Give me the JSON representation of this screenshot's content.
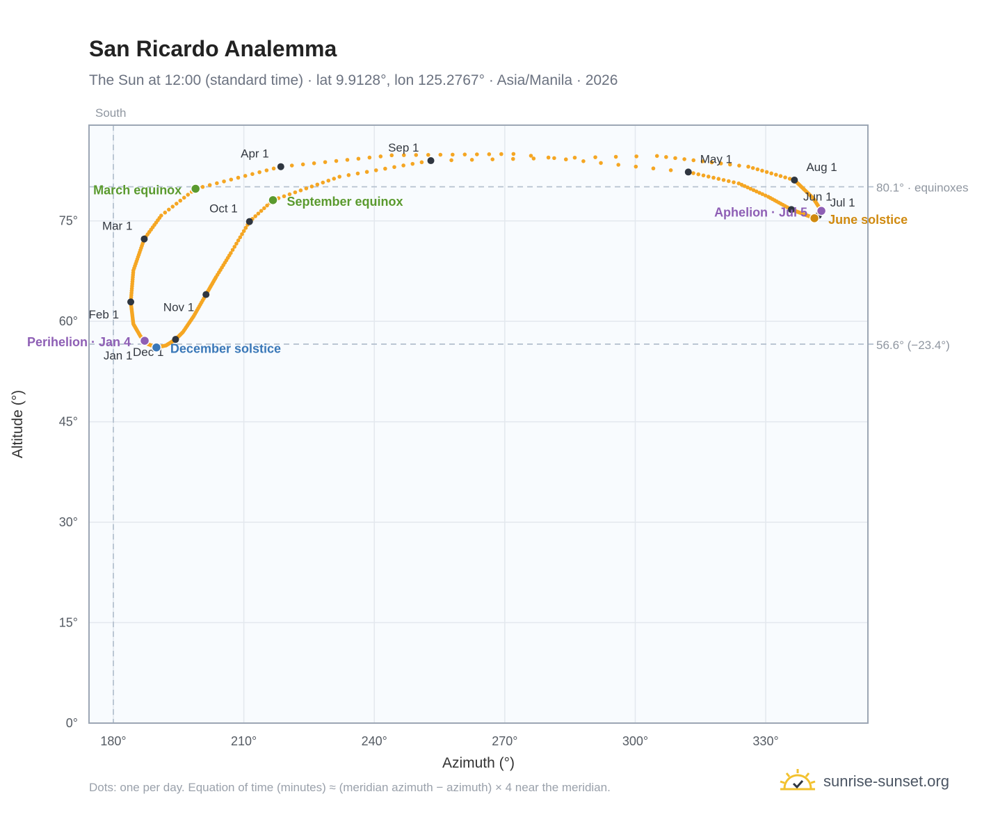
{
  "title": "San Ricardo Analemma",
  "subtitle": "The Sun at 12:00 (standard time) · lat 9.9128°, lon 125.2767° · Asia/Manila · 2026",
  "footnote": "Dots: one per day. Equation of time (minutes) ≈ (meridian azimuth − azimuth) × 4 near the meridian.",
  "brand": {
    "name": "sunrise-sunset.org",
    "icon": "sun-logo-icon"
  },
  "colors": {
    "path": "#f5a623",
    "month_marker": "#2f3640",
    "equinox": "#5a9a2e",
    "june_solstice": "#d08a10",
    "december_solstice": "#3a78b8",
    "apsis": "#8e5fb5",
    "grid": "#e3e8ee",
    "plot_bg": "#f8fbfe",
    "frame": "#9ca6b4",
    "ref_line": "#b6c2d0"
  },
  "chart_data": {
    "type": "scatter",
    "xlabel": "Azimuth (°)",
    "ylabel": "Altitude (°)",
    "xlim": [
      174.4,
      353.5
    ],
    "ylim": [
      0,
      89.3
    ],
    "xticks": [
      180,
      210,
      240,
      270,
      300,
      330
    ],
    "xtick_labels": [
      "180°",
      "210°",
      "240°",
      "270°",
      "300°",
      "330°"
    ],
    "yticks": [
      0,
      15,
      30,
      45,
      60,
      75
    ],
    "ytick_labels": [
      "0°",
      "15°",
      "30°",
      "45°",
      "60°",
      "75°"
    ],
    "grid": true,
    "reference_lines": [
      {
        "axis": "x",
        "value": 180,
        "label": "South"
      },
      {
        "axis": "y",
        "value": 80.1,
        "label": "80.1° · equinoxes"
      },
      {
        "axis": "y",
        "value": 56.6,
        "label": "56.6° (−23.4°)"
      }
    ],
    "month_markers": [
      {
        "label": "Jan 1",
        "az": 187.1,
        "alt": 57.1,
        "lx": -17,
        "ly": 22,
        "anchor": "end"
      },
      {
        "label": "Feb 1",
        "az": 184.0,
        "alt": 62.9,
        "lx": -17,
        "ly": 19,
        "anchor": "end"
      },
      {
        "label": "Mar 1",
        "az": 187.1,
        "alt": 72.3,
        "lx": -17,
        "ly": -18,
        "anchor": "end"
      },
      {
        "label": "Apr 1",
        "az": 218.5,
        "alt": 83.1,
        "lx": -17,
        "ly": -18,
        "anchor": "end"
      },
      {
        "label": "May 1",
        "az": 312.2,
        "alt": 82.3,
        "lx": 17,
        "ly": -18,
        "anchor": "start"
      },
      {
        "label": "Jun 1",
        "az": 335.9,
        "alt": 76.7,
        "lx": 17,
        "ly": -18,
        "anchor": "start"
      },
      {
        "label": "Jul 1",
        "az": 342.1,
        "alt": 75.8,
        "lx": 17,
        "ly": -18,
        "anchor": "start"
      },
      {
        "label": "Aug 1",
        "az": 336.6,
        "alt": 81.1,
        "lx": 17,
        "ly": -18,
        "anchor": "start"
      },
      {
        "label": "Sep 1",
        "az": 253.0,
        "alt": 84.0,
        "lx": -17,
        "ly": -18,
        "anchor": "end"
      },
      {
        "label": "Oct 1",
        "az": 211.3,
        "alt": 74.9,
        "lx": -17,
        "ly": -18,
        "anchor": "end"
      },
      {
        "label": "Nov 1",
        "az": 201.3,
        "alt": 64.0,
        "lx": -17,
        "ly": 19,
        "anchor": "end"
      },
      {
        "label": "Dec 1",
        "az": 194.3,
        "alt": 57.3,
        "lx": -17,
        "ly": 19,
        "anchor": "end"
      }
    ],
    "events": [
      {
        "label": "March equinox",
        "az": 198.9,
        "alt": 79.8,
        "type": "equinox",
        "lx": -20,
        "ly": 8,
        "anchor": "end"
      },
      {
        "label": "September equinox",
        "az": 216.7,
        "alt": 78.1,
        "type": "equinox",
        "lx": 20,
        "ly": 8,
        "anchor": "start"
      },
      {
        "label": "June solstice",
        "az": 341.2,
        "alt": 75.4,
        "type": "june_solstice",
        "lx": 20,
        "ly": 8,
        "anchor": "start"
      },
      {
        "label": "December solstice",
        "az": 189.9,
        "alt": 56.1,
        "type": "december_solstice",
        "lx": 20,
        "ly": 8,
        "anchor": "start"
      },
      {
        "label": "Perihelion · Jan 4",
        "az": 187.2,
        "alt": 57.1,
        "type": "apsis",
        "lx": -20,
        "ly": 8,
        "anchor": "end"
      },
      {
        "label": "Aphelion · Jul 5",
        "az": 342.8,
        "alt": 76.5,
        "type": "apsis",
        "lx": -20,
        "ly": 8,
        "anchor": "end"
      }
    ],
    "path_anchors": [
      {
        "day": 1,
        "az": 187.1,
        "alt": 57.1
      },
      {
        "day": 8,
        "az": 186.2,
        "alt": 57.8
      },
      {
        "day": 18,
        "az": 184.6,
        "alt": 59.6
      },
      {
        "day": 32,
        "az": 184.0,
        "alt": 62.9
      },
      {
        "day": 46,
        "az": 184.6,
        "alt": 67.6
      },
      {
        "day": 60,
        "az": 187.1,
        "alt": 72.3
      },
      {
        "day": 70,
        "az": 191.0,
        "alt": 75.8
      },
      {
        "day": 79,
        "az": 198.9,
        "alt": 79.8
      },
      {
        "day": 91,
        "az": 218.5,
        "alt": 83.1
      },
      {
        "day": 101,
        "az": 244.0,
        "alt": 84.8
      },
      {
        "day": 111,
        "az": 272.0,
        "alt": 85.0
      },
      {
        "day": 121,
        "az": 312.2,
        "alt": 82.3
      },
      {
        "day": 131,
        "az": 323.8,
        "alt": 80.6
      },
      {
        "day": 141,
        "az": 330.6,
        "alt": 78.6
      },
      {
        "day": 152,
        "az": 335.9,
        "alt": 76.7
      },
      {
        "day": 172,
        "az": 341.2,
        "alt": 75.4
      },
      {
        "day": 182,
        "az": 342.1,
        "alt": 75.8
      },
      {
        "day": 186,
        "az": 342.8,
        "alt": 76.5
      },
      {
        "day": 198,
        "az": 340.9,
        "alt": 78.4
      },
      {
        "day": 213,
        "az": 336.6,
        "alt": 81.1
      },
      {
        "day": 223,
        "az": 326.0,
        "alt": 83.1
      },
      {
        "day": 233,
        "az": 305.0,
        "alt": 84.7
      },
      {
        "day": 244,
        "az": 253.0,
        "alt": 84.0
      },
      {
        "day": 254,
        "az": 232.0,
        "alt": 81.6
      },
      {
        "day": 266,
        "az": 216.7,
        "alt": 78.1
      },
      {
        "day": 274,
        "az": 211.3,
        "alt": 74.9
      },
      {
        "day": 284,
        "az": 207.0,
        "alt": 70.2
      },
      {
        "day": 294,
        "az": 203.6,
        "alt": 66.6
      },
      {
        "day": 305,
        "az": 201.3,
        "alt": 64.0
      },
      {
        "day": 316,
        "az": 198.5,
        "alt": 60.8
      },
      {
        "day": 326,
        "az": 196.0,
        "alt": 58.4
      },
      {
        "day": 335,
        "az": 194.3,
        "alt": 57.3
      },
      {
        "day": 345,
        "az": 192.1,
        "alt": 56.4
      },
      {
        "day": 355,
        "az": 189.9,
        "alt": 56.1
      },
      {
        "day": 365,
        "az": 187.6,
        "alt": 56.7
      },
      {
        "day": 366,
        "az": 187.1,
        "alt": 57.1
      }
    ]
  }
}
